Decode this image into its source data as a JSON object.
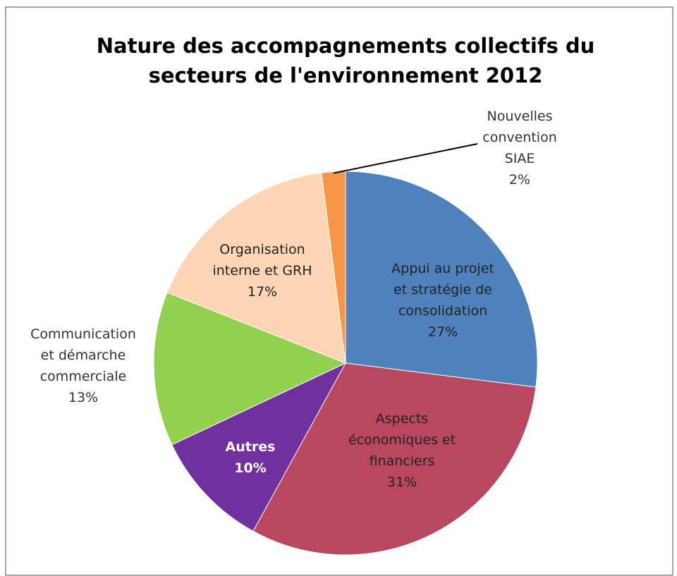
{
  "chart_data": {
    "type": "pie",
    "title": "Nature des accompagnements collectifs du\nsecteurs de l'environnement 2012",
    "categories": [
      "Appui au projet\net stratégie de\nconsolidation",
      "Aspects\néconomiques et\nfinanciers",
      "Autres",
      "Communication\net démarche\ncommerciale",
      "Organisation\ninterne et GRH",
      "Nouvelles\nconvention\nSIAE"
    ],
    "values": [
      27,
      31,
      10,
      13,
      17,
      2
    ],
    "value_labels": [
      "27%",
      "31%",
      "10%",
      "13%",
      "17%",
      "2%"
    ],
    "colors": [
      "#4f81bd",
      "#b9475f",
      "#7030a0",
      "#92d050",
      "#fcd5b4",
      "#f79646"
    ]
  }
}
